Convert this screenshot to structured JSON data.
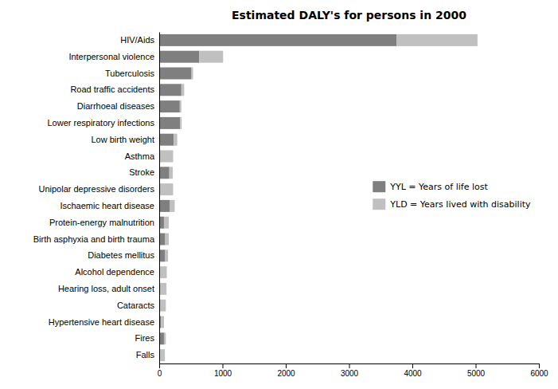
{
  "chart_data": {
    "type": "bar",
    "orientation": "horizontal",
    "stacked": true,
    "title": "Estimated DALY's for persons in 2000",
    "categories": [
      "Falls",
      "Fires",
      "Hypertensive heart disease",
      "Cataracts",
      "Hearing loss, adult onset",
      "Alcohol dependence",
      "Diabetes mellitus",
      "Birth asphyxia and birth trauma",
      "Protein-energy malnutrition",
      "Ischaemic heart disease",
      "Unipolar depressive disorders",
      "Stroke",
      "Asthma",
      "Low birth weight",
      "Lower respiratory infections",
      "Diarrhoeal diseases",
      "Road traffic accidents",
      "Tuberculosis",
      "Interpersonal violence",
      "HIV/Aids"
    ],
    "series": [
      {
        "name": "YYL = Years of life lost",
        "color": "#7f7f7f",
        "values": [
          0,
          75,
          30,
          20,
          20,
          5,
          95,
          95,
          75,
          170,
          20,
          160,
          20,
          230,
          330,
          325,
          350,
          510,
          630,
          3750
        ]
      },
      {
        "name": "YLD = Years lived with disability",
        "color": "#c0c0c0",
        "values": [
          90,
          30,
          45,
          85,
          95,
          115,
          45,
          55,
          75,
          75,
          200,
          55,
          200,
          55,
          25,
          25,
          45,
          25,
          380,
          1280
        ]
      }
    ],
    "xlim": [
      0,
      6000
    ],
    "xticks": [
      0,
      1000,
      2000,
      3000,
      4000,
      5000,
      6000
    ],
    "legend": "right",
    "grid": false
  }
}
